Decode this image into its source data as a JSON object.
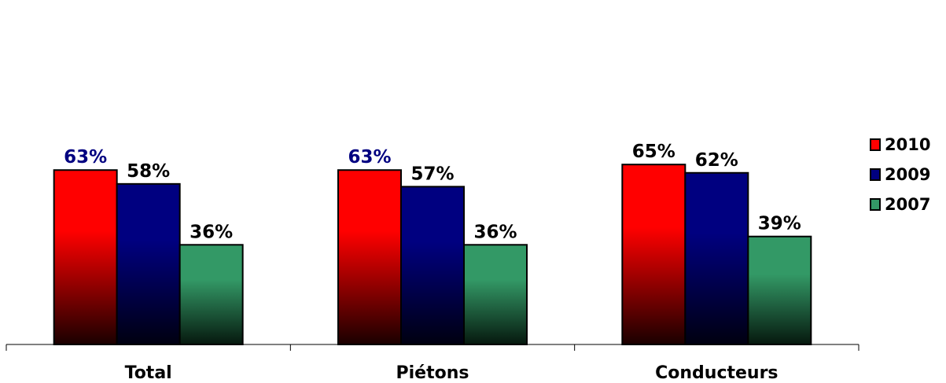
{
  "chart_data": {
    "type": "bar",
    "categories": [
      "Total",
      "Piétons",
      "Conducteurs"
    ],
    "series": [
      {
        "name": "2010",
        "values": [
          63,
          63,
          65
        ],
        "labels": [
          "63%",
          "63%",
          "65%"
        ],
        "color_top": "#ff0000",
        "color_bottom": "#1a0000"
      },
      {
        "name": "2009",
        "values": [
          58,
          57,
          62
        ],
        "labels": [
          "58%",
          "57%",
          "62%"
        ],
        "color_top": "#000080",
        "color_bottom": "#000010"
      },
      {
        "name": "2007",
        "values": [
          36,
          36,
          39
        ],
        "labels": [
          "36%",
          "36%",
          "39%"
        ],
        "color_top": "#339966",
        "color_bottom": "#06180e"
      }
    ],
    "label_colors": [
      [
        "#000080",
        "#000000",
        "#000000"
      ],
      [
        "#000080",
        "#000000",
        "#000000"
      ],
      [
        "#000000",
        "#000000",
        "#000000"
      ]
    ],
    "ylim": [
      0,
      68
    ],
    "grid": false,
    "legend_position": "right"
  }
}
